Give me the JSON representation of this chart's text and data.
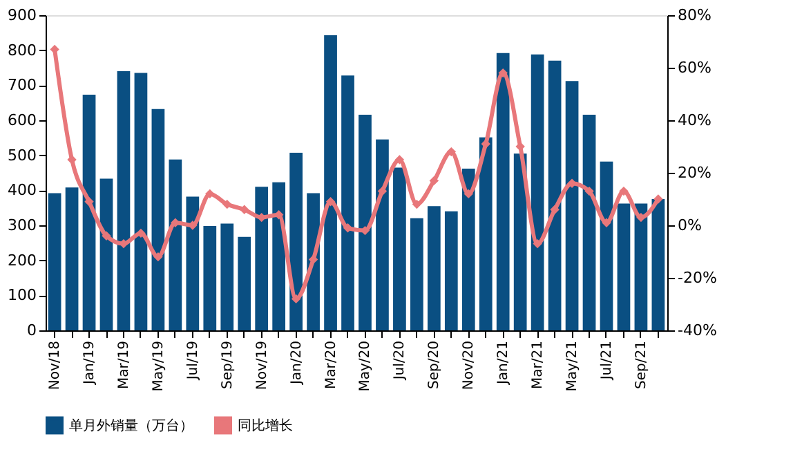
{
  "chart_data": {
    "type": "bar",
    "categories": [
      "Nov/18",
      null,
      "Jan/19",
      null,
      "Mar/19",
      null,
      "May/19",
      null,
      "Jul/19",
      null,
      "Sep/19",
      null,
      "Nov/19",
      null,
      "Jan/20",
      null,
      "Mar/20",
      null,
      "May/20",
      null,
      "Jul/20",
      null,
      "Sep/20",
      null,
      "Nov/20",
      null,
      "Jan/21",
      null,
      "Mar/21",
      null,
      "May/21",
      null,
      "Jul/21",
      null,
      "Sep/21",
      null
    ],
    "series": [
      {
        "name": "单月外销量（万台）",
        "color": "#0a4f82",
        "values": [
          392,
          408,
          673,
          433,
          740,
          735,
          632,
          488,
          382,
          298,
          305,
          267,
          410,
          423,
          507,
          392,
          843,
          728,
          616,
          545,
          465,
          320,
          355,
          340,
          462,
          551,
          792,
          505,
          788,
          770,
          712,
          616,
          482,
          362,
          362,
          375
        ]
      },
      {
        "name": "同比增长",
        "type": "line",
        "axis": "y2",
        "color": "#e8777a",
        "marker": "diamond",
        "values": [
          67,
          25,
          9,
          -4,
          -7,
          -3,
          -12,
          1,
          0,
          12,
          8,
          6,
          3,
          4,
          -28,
          -13,
          9,
          -1,
          -2,
          13,
          25,
          8,
          17,
          28,
          12,
          31,
          58,
          30,
          -7,
          6,
          16,
          13,
          1,
          13,
          3,
          10
        ]
      }
    ],
    "ylim": [
      0,
      900
    ],
    "yticks": [
      0,
      100,
      200,
      300,
      400,
      500,
      600,
      700,
      800,
      900
    ],
    "y2lim": [
      -40,
      80
    ],
    "y2ticks": [
      {
        "value": -40,
        "label": "-40%"
      },
      {
        "value": -20,
        "label": "-20%"
      },
      {
        "value": 0,
        "label": "0%"
      },
      {
        "value": 20,
        "label": "20%"
      },
      {
        "value": 40,
        "label": "40%"
      },
      {
        "value": 60,
        "label": "60%"
      },
      {
        "value": 80,
        "label": "80%"
      }
    ],
    "grid": false,
    "legend": "bottom"
  }
}
